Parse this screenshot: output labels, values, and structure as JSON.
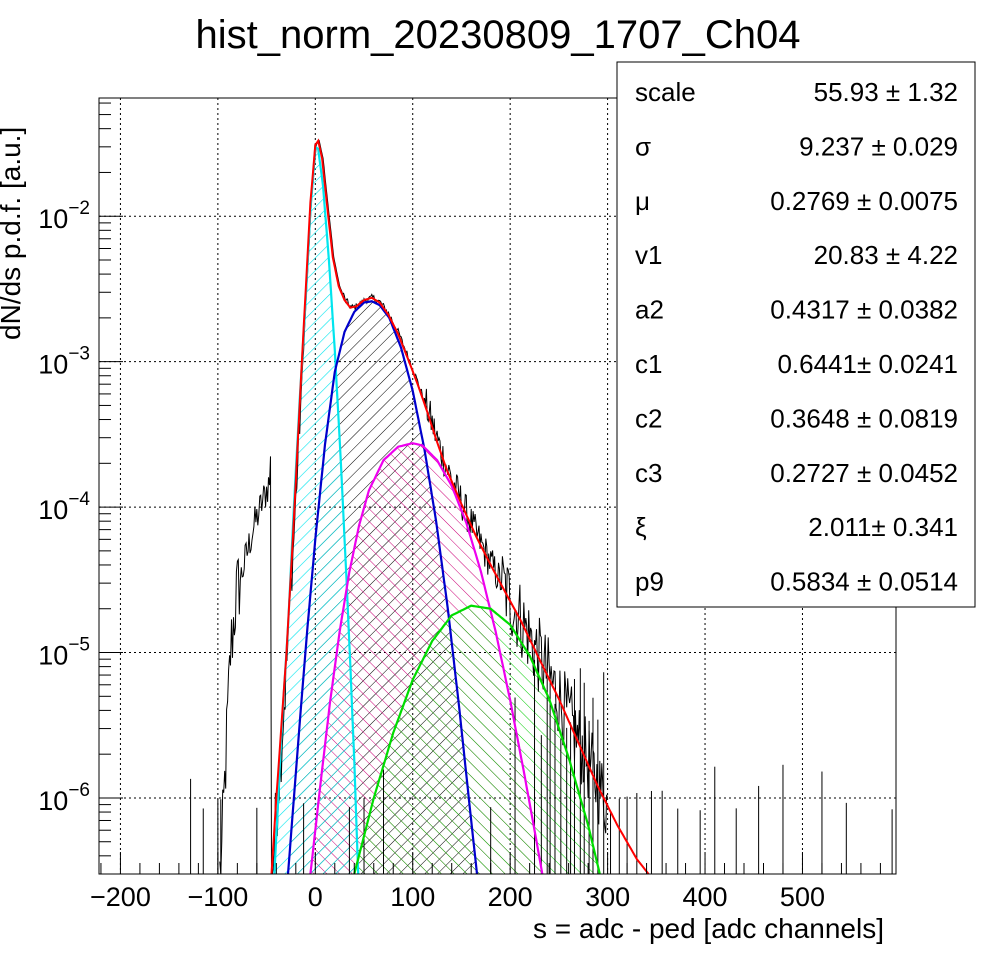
{
  "chart_data": {
    "type": "line",
    "title": "hist_norm_20230809_1707_Ch04",
    "xlabel": "s = adc - ped [adc channels]",
    "ylabel": "dN/ds p.d.f. [a.u.]",
    "x_ticks": [
      "−200",
      "−100",
      "0",
      "100",
      "200",
      "300",
      "400",
      "500"
    ],
    "x_tick_values": [
      -200,
      -100,
      0,
      100,
      200,
      300,
      400,
      500
    ],
    "xlim": [
      -222,
      596
    ],
    "ylim": [
      3e-07,
      0.065
    ],
    "yscale": "log",
    "y_ticks": [
      {
        "base": "10",
        "exp": "−2",
        "value": 0.01
      },
      {
        "base": "10",
        "exp": "−3",
        "value": 0.001
      },
      {
        "base": "10",
        "exp": "−4",
        "value": 0.0001
      },
      {
        "base": "10",
        "exp": "−5",
        "value": 1e-05
      },
      {
        "base": "10",
        "exp": "−6",
        "value": 1e-06
      }
    ],
    "grid": true,
    "series": [
      {
        "color": "#ff0000",
        "role": "total fit",
        "points": [
          [
            -45,
            3e-07
          ],
          [
            -40,
            1e-06
          ],
          [
            -35,
            3e-06
          ],
          [
            -30,
            9e-06
          ],
          [
            -25,
            3.5e-05
          ],
          [
            -20,
            0.00015
          ],
          [
            -15,
            0.0007
          ],
          [
            -10,
            0.003
          ],
          [
            -5,
            0.0125
          ],
          [
            0,
            0.031
          ],
          [
            3,
            0.033
          ],
          [
            7,
            0.025
          ],
          [
            12,
            0.012
          ],
          [
            18,
            0.0052
          ],
          [
            24,
            0.0033
          ],
          [
            30,
            0.00265
          ],
          [
            36,
            0.00235
          ],
          [
            42,
            0.0024
          ],
          [
            50,
            0.00265
          ],
          [
            58,
            0.00275
          ],
          [
            66,
            0.00255
          ],
          [
            75,
            0.0021
          ],
          [
            85,
            0.00155
          ],
          [
            95,
            0.00105
          ],
          [
            105,
            0.0007
          ],
          [
            115,
            0.00045
          ],
          [
            125,
            0.00028
          ],
          [
            135,
            0.00018
          ],
          [
            150,
            0.000105
          ],
          [
            165,
            6.3e-05
          ],
          [
            180,
            4e-05
          ],
          [
            195,
            2.6e-05
          ],
          [
            210,
            1.7e-05
          ],
          [
            230,
            9e-06
          ],
          [
            250,
            4.8e-06
          ],
          [
            270,
            2.4e-06
          ],
          [
            290,
            1.2e-06
          ],
          [
            310,
            6.5e-07
          ],
          [
            330,
            3.8e-07
          ],
          [
            342,
            3e-07
          ]
        ]
      },
      {
        "color": "#00e5ee",
        "role": "pedestal component",
        "fill": "#00e5ee",
        "points": [
          [
            -42,
            3e-07
          ],
          [
            -38,
            1e-06
          ],
          [
            -34,
            3.5e-06
          ],
          [
            -28,
            1.5e-05
          ],
          [
            -22,
            0.0001
          ],
          [
            -16,
            0.00055
          ],
          [
            -10,
            0.0026
          ],
          [
            -5,
            0.011
          ],
          [
            0,
            0.03
          ],
          [
            3,
            0.029
          ],
          [
            8,
            0.016
          ],
          [
            14,
            0.005
          ],
          [
            20,
            0.0012
          ],
          [
            26,
            0.00022
          ],
          [
            32,
            3.2e-05
          ],
          [
            36,
            8e-06
          ],
          [
            40,
            1.8e-06
          ],
          [
            44,
            3e-07
          ]
        ]
      },
      {
        "color": "#0000cc",
        "role": "1 p.e. component",
        "fill": "#000000",
        "points": [
          [
            -28,
            3e-07
          ],
          [
            -22,
            1e-06
          ],
          [
            -15,
            4e-06
          ],
          [
            -8,
            1.5e-05
          ],
          [
            0,
            6e-05
          ],
          [
            10,
            0.00027
          ],
          [
            20,
            0.00085
          ],
          [
            30,
            0.0016
          ],
          [
            40,
            0.0022
          ],
          [
            50,
            0.00255
          ],
          [
            58,
            0.0026
          ],
          [
            66,
            0.00245
          ],
          [
            76,
            0.002
          ],
          [
            88,
            0.00125
          ],
          [
            100,
            0.00063
          ],
          [
            112,
            0.00025
          ],
          [
            124,
            8e-05
          ],
          [
            136,
            2e-05
          ],
          [
            148,
            4e-06
          ],
          [
            160,
            7e-07
          ],
          [
            166,
            3e-07
          ]
        ]
      },
      {
        "color": "#ee00ee",
        "role": "2 p.e. component",
        "fill": "#cc0077",
        "points": [
          [
            -5,
            3e-07
          ],
          [
            5,
            1.2e-06
          ],
          [
            15,
            4.5e-06
          ],
          [
            25,
            1.4e-05
          ],
          [
            35,
            3.6e-05
          ],
          [
            45,
            7.5e-05
          ],
          [
            55,
            0.00013
          ],
          [
            70,
            0.00021
          ],
          [
            85,
            0.00026
          ],
          [
            100,
            0.000275
          ],
          [
            110,
            0.000265
          ],
          [
            125,
            0.00021
          ],
          [
            140,
            0.00014
          ],
          [
            155,
            7.8e-05
          ],
          [
            170,
            3.6e-05
          ],
          [
            185,
            1.4e-05
          ],
          [
            200,
            4.7e-06
          ],
          [
            215,
            1.4e-06
          ],
          [
            225,
            6e-07
          ],
          [
            233,
            3e-07
          ]
        ]
      },
      {
        "color": "#00dd00",
        "role": "3 p.e. component",
        "fill": "#00cc00",
        "points": [
          [
            40,
            3e-07
          ],
          [
            60,
            1e-06
          ],
          [
            80,
            2.8e-06
          ],
          [
            100,
            6.5e-06
          ],
          [
            120,
            1.2e-05
          ],
          [
            140,
            1.8e-05
          ],
          [
            160,
            2.1e-05
          ],
          [
            180,
            2e-05
          ],
          [
            200,
            1.55e-05
          ],
          [
            220,
            9.5e-06
          ],
          [
            240,
            4.8e-06
          ],
          [
            260,
            1.9e-06
          ],
          [
            280,
            6.5e-07
          ],
          [
            292,
            3e-07
          ]
        ]
      }
    ],
    "data_histogram": {
      "color": "#000000",
      "x_range": [
        -100,
        596
      ],
      "note_points": [
        [
          -98,
          3e-07
        ],
        [
          -92,
          2.5e-06
        ],
        [
          -88,
          1e-05
        ],
        [
          -82,
          2.5e-05
        ],
        [
          -75,
          3.8e-05
        ],
        [
          -65,
          7e-05
        ],
        [
          -55,
          0.00011
        ],
        [
          -48,
          0.00015
        ],
        [
          -45,
          0.00035
        ]
      ]
    }
  },
  "stats_box": {
    "rows": [
      {
        "name": "scale",
        "value": "55.93 ± 1.32"
      },
      {
        "name": "σ",
        "value": "9.237 ± 0.029"
      },
      {
        "name": "μ",
        "value": "0.2769 ± 0.0075"
      },
      {
        "name": "v1",
        "value": "20.83 ± 4.22"
      },
      {
        "name": "a2",
        "value": "0.4317 ± 0.0382"
      },
      {
        "name": "c1",
        "value": "0.6441± 0.0241"
      },
      {
        "name": "c2",
        "value": "0.3648 ± 0.0819"
      },
      {
        "name": "c3",
        "value": "0.2727 ± 0.0452"
      },
      {
        "name": "ξ",
        "value": "2.011± 0.341"
      },
      {
        "name": "p9",
        "value": "0.5834 ± 0.0514"
      }
    ]
  }
}
